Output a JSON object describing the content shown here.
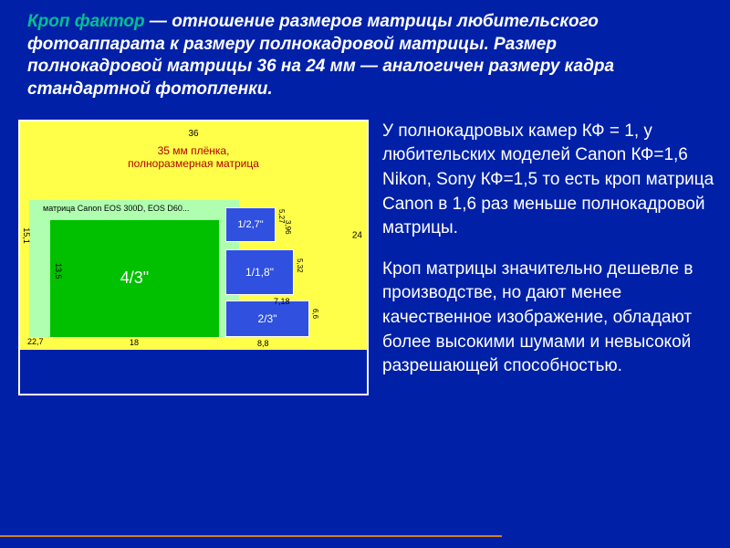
{
  "header": {
    "term": "Кроп фактор",
    "definition": " — отношение размеров матрицы любительского фотоаппарата к размеру полнокадровой матрицы. Размер полнокадровой матрицы 36 на 24 мм — аналогичен размеру кадра стандартной фотопленки."
  },
  "diagram": {
    "dim_36": "36",
    "dim_24": "24",
    "label_35mm_line1": "35 мм плёнка,",
    "label_35mm_line2": "полноразмерная матрица",
    "canon_label": "матрица Canon EOS 300D, EOS D60...",
    "dim_227": "22,7",
    "dim_151": "15,1",
    "four_thirds": "4/3\"",
    "dim_18": "18",
    "dim_135": "13,5",
    "sensor_127": "1/2,7\"",
    "sensor_118": "1/1,8\"",
    "sensor_23": "2/3\"",
    "d_527": "5,27",
    "d_396": "3,96",
    "d_532": "5,32",
    "d_718": "7,18",
    "d_66": "6,6",
    "d_88": "8,8"
  },
  "body": {
    "p1": "У полнокадровых камер КФ = 1, у любительских моделей Canon КФ=1,6 Nikon, Sony КФ=1,5 то есть кроп матрица Canon в 1,6 раз меньше полнокадровой матрицы.",
    "p2": "Кроп матрицы значительно дешевле в производстве, но дают менее качественное изображение, обладают более высокими шумами и невысокой разрешающей способностью."
  }
}
